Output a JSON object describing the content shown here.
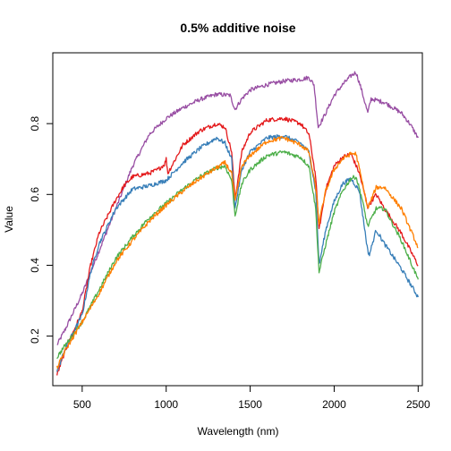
{
  "chart_data": {
    "type": "line",
    "title": "0.5% additive noise",
    "xlabel": "Wavelength (nm)",
    "ylabel": "Value",
    "xlim": [
      325,
      2525
    ],
    "ylim": [
      0.06,
      1.0
    ],
    "xticks": [
      500,
      1000,
      1500,
      2000,
      2500
    ],
    "yticks": [
      0.2,
      0.4,
      0.6,
      0.8
    ],
    "grid": false,
    "legend": "none",
    "series": [
      {
        "color": "#984EA3",
        "points": [
          [
            350,
            0.175
          ],
          [
            400,
            0.22
          ],
          [
            500,
            0.32
          ],
          [
            600,
            0.44
          ],
          [
            700,
            0.56
          ],
          [
            800,
            0.68
          ],
          [
            900,
            0.77
          ],
          [
            1000,
            0.815
          ],
          [
            1100,
            0.845
          ],
          [
            1200,
            0.868
          ],
          [
            1300,
            0.883
          ],
          [
            1380,
            0.88
          ],
          [
            1410,
            0.84
          ],
          [
            1450,
            0.87
          ],
          [
            1500,
            0.895
          ],
          [
            1600,
            0.91
          ],
          [
            1700,
            0.92
          ],
          [
            1800,
            0.925
          ],
          [
            1850,
            0.93
          ],
          [
            1880,
            0.91
          ],
          [
            1905,
            0.79
          ],
          [
            1950,
            0.83
          ],
          [
            2000,
            0.88
          ],
          [
            2050,
            0.91
          ],
          [
            2100,
            0.935
          ],
          [
            2130,
            0.945
          ],
          [
            2160,
            0.9
          ],
          [
            2200,
            0.83
          ],
          [
            2220,
            0.87
          ],
          [
            2300,
            0.86
          ],
          [
            2400,
            0.83
          ],
          [
            2450,
            0.8
          ],
          [
            2500,
            0.76
          ]
        ]
      },
      {
        "color": "#E41A1C",
        "points": [
          [
            350,
            0.09
          ],
          [
            400,
            0.16
          ],
          [
            500,
            0.27
          ],
          [
            550,
            0.4
          ],
          [
            600,
            0.49
          ],
          [
            700,
            0.585
          ],
          [
            750,
            0.625
          ],
          [
            800,
            0.65
          ],
          [
            900,
            0.66
          ],
          [
            950,
            0.67
          ],
          [
            990,
            0.685
          ],
          [
            1000,
            0.7
          ],
          [
            1010,
            0.66
          ],
          [
            1100,
            0.74
          ],
          [
            1200,
            0.78
          ],
          [
            1300,
            0.8
          ],
          [
            1350,
            0.79
          ],
          [
            1390,
            0.72
          ],
          [
            1410,
            0.585
          ],
          [
            1450,
            0.72
          ],
          [
            1500,
            0.775
          ],
          [
            1600,
            0.81
          ],
          [
            1700,
            0.815
          ],
          [
            1800,
            0.8
          ],
          [
            1850,
            0.77
          ],
          [
            1890,
            0.65
          ],
          [
            1910,
            0.5
          ],
          [
            1950,
            0.615
          ],
          [
            2000,
            0.68
          ],
          [
            2050,
            0.705
          ],
          [
            2100,
            0.715
          ],
          [
            2150,
            0.66
          ],
          [
            2200,
            0.565
          ],
          [
            2250,
            0.6
          ],
          [
            2300,
            0.56
          ],
          [
            2400,
            0.49
          ],
          [
            2500,
            0.4
          ]
        ]
      },
      {
        "color": "#377EB8",
        "points": [
          [
            350,
            0.1
          ],
          [
            400,
            0.165
          ],
          [
            500,
            0.26
          ],
          [
            550,
            0.38
          ],
          [
            600,
            0.46
          ],
          [
            700,
            0.56
          ],
          [
            800,
            0.615
          ],
          [
            900,
            0.625
          ],
          [
            1000,
            0.64
          ],
          [
            1100,
            0.69
          ],
          [
            1200,
            0.73
          ],
          [
            1300,
            0.76
          ],
          [
            1350,
            0.745
          ],
          [
            1390,
            0.7
          ],
          [
            1410,
            0.56
          ],
          [
            1450,
            0.67
          ],
          [
            1500,
            0.72
          ],
          [
            1600,
            0.76
          ],
          [
            1700,
            0.765
          ],
          [
            1800,
            0.745
          ],
          [
            1850,
            0.72
          ],
          [
            1890,
            0.61
          ],
          [
            1910,
            0.4
          ],
          [
            1950,
            0.5
          ],
          [
            2000,
            0.58
          ],
          [
            2050,
            0.63
          ],
          [
            2100,
            0.645
          ],
          [
            2150,
            0.61
          ],
          [
            2200,
            0.44
          ],
          [
            2210,
            0.43
          ],
          [
            2250,
            0.5
          ],
          [
            2300,
            0.46
          ],
          [
            2400,
            0.39
          ],
          [
            2500,
            0.31
          ]
        ]
      },
      {
        "color": "#4DAF4A",
        "points": [
          [
            350,
            0.14
          ],
          [
            400,
            0.175
          ],
          [
            500,
            0.24
          ],
          [
            600,
            0.33
          ],
          [
            700,
            0.42
          ],
          [
            800,
            0.48
          ],
          [
            900,
            0.535
          ],
          [
            1000,
            0.575
          ],
          [
            1100,
            0.615
          ],
          [
            1200,
            0.65
          ],
          [
            1300,
            0.675
          ],
          [
            1350,
            0.68
          ],
          [
            1390,
            0.64
          ],
          [
            1410,
            0.54
          ],
          [
            1450,
            0.63
          ],
          [
            1500,
            0.67
          ],
          [
            1600,
            0.71
          ],
          [
            1700,
            0.72
          ],
          [
            1800,
            0.705
          ],
          [
            1850,
            0.68
          ],
          [
            1890,
            0.56
          ],
          [
            1910,
            0.38
          ],
          [
            1950,
            0.46
          ],
          [
            2000,
            0.55
          ],
          [
            2050,
            0.61
          ],
          [
            2100,
            0.645
          ],
          [
            2130,
            0.65
          ],
          [
            2160,
            0.6
          ],
          [
            2200,
            0.51
          ],
          [
            2250,
            0.56
          ],
          [
            2300,
            0.56
          ],
          [
            2400,
            0.47
          ],
          [
            2500,
            0.36
          ]
        ]
      },
      {
        "color": "#FF7F00",
        "points": [
          [
            350,
            0.11
          ],
          [
            400,
            0.16
          ],
          [
            500,
            0.24
          ],
          [
            600,
            0.32
          ],
          [
            700,
            0.41
          ],
          [
            800,
            0.47
          ],
          [
            900,
            0.525
          ],
          [
            1000,
            0.57
          ],
          [
            1100,
            0.61
          ],
          [
            1200,
            0.645
          ],
          [
            1300,
            0.675
          ],
          [
            1350,
            0.69
          ],
          [
            1390,
            0.66
          ],
          [
            1410,
            0.58
          ],
          [
            1450,
            0.68
          ],
          [
            1500,
            0.71
          ],
          [
            1600,
            0.75
          ],
          [
            1700,
            0.76
          ],
          [
            1800,
            0.74
          ],
          [
            1850,
            0.72
          ],
          [
            1890,
            0.62
          ],
          [
            1910,
            0.52
          ],
          [
            1950,
            0.61
          ],
          [
            2000,
            0.67
          ],
          [
            2050,
            0.7
          ],
          [
            2100,
            0.715
          ],
          [
            2130,
            0.715
          ],
          [
            2160,
            0.65
          ],
          [
            2200,
            0.56
          ],
          [
            2250,
            0.62
          ],
          [
            2300,
            0.62
          ],
          [
            2400,
            0.56
          ],
          [
            2500,
            0.45
          ]
        ]
      }
    ]
  }
}
